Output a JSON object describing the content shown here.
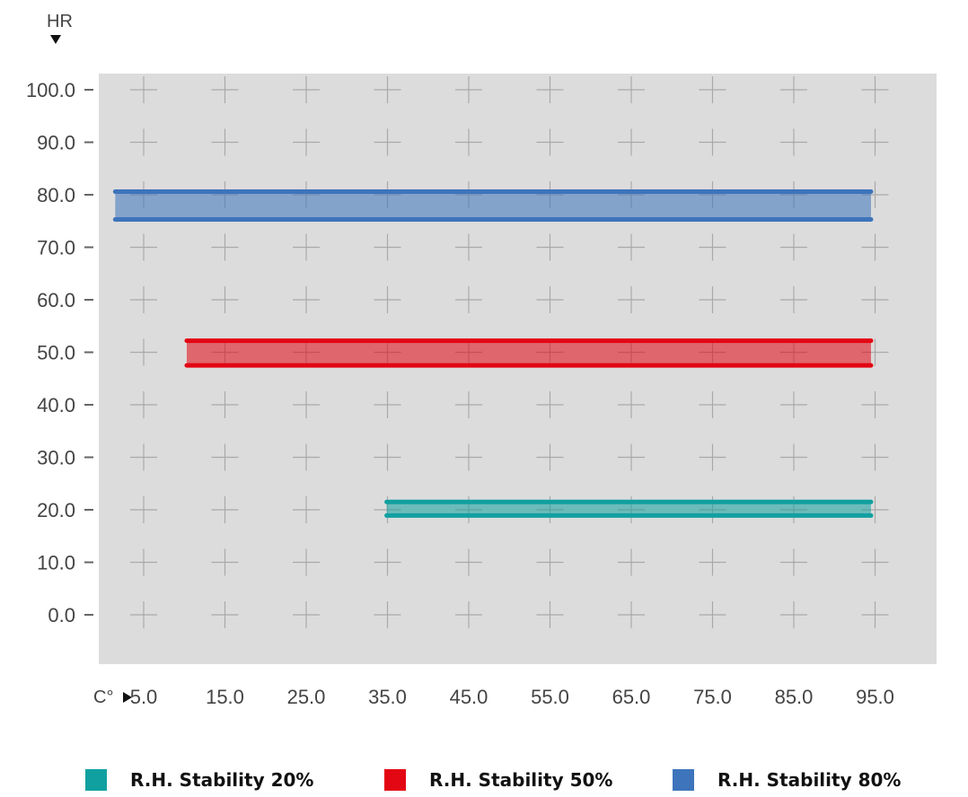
{
  "chart_data": {
    "type": "area",
    "y_axis_label": "HR",
    "x_axis_label": "C°",
    "x_ticks": [
      "5.0",
      "15.0",
      "25.0",
      "35.0",
      "45.0",
      "55.0",
      "65.0",
      "75.0",
      "85.0",
      "95.0"
    ],
    "y_ticks": [
      "100.0",
      "90.0",
      "80.0",
      "70.0",
      "60.0",
      "50.0",
      "40.0",
      "30.0",
      "20.0",
      "10.0",
      "0.0"
    ],
    "xlim": [
      2,
      102
    ],
    "ylim": [
      -10,
      103
    ],
    "grid": true,
    "legend_position": "bottom",
    "series": [
      {
        "name": "R.H. Stability 20%",
        "color": "#11a0a0",
        "x": [
          34.9,
          94.5
        ],
        "y_low": 18.9,
        "y_high": 21.5
      },
      {
        "name": "R.H. Stability 50%",
        "color": "#e30613",
        "x": [
          10.3,
          94.5
        ],
        "y_low": 47.5,
        "y_high": 52.2
      },
      {
        "name": "R.H. Stability 80%",
        "color": "#3d74bb",
        "x": [
          1.5,
          94.5
        ],
        "y_low": 75.3,
        "y_high": 80.6
      }
    ]
  },
  "legend": [
    {
      "label_main": "R.H. Stability",
      "label_pct": "20%",
      "color": "#11a0a0"
    },
    {
      "label_main": "R.H. Stability",
      "label_pct": "50%",
      "color": "#e30613"
    },
    {
      "label_main": "R.H. Stability",
      "label_pct": "80%",
      "color": "#3d74bb"
    }
  ]
}
